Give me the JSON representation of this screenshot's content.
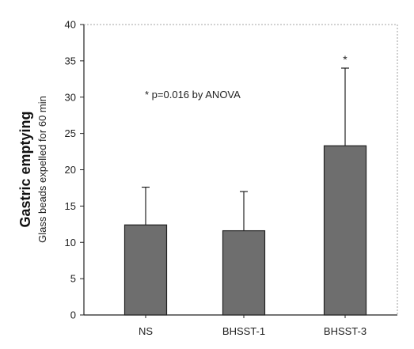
{
  "chart_data": {
    "type": "bar",
    "categories": [
      "NS",
      "BHSST-1",
      "BHSST-3"
    ],
    "values": [
      12.4,
      11.6,
      23.3
    ],
    "errors": [
      5.2,
      5.4,
      10.7
    ],
    "significance": [
      "",
      "",
      "*"
    ],
    "ylabel": "Gastric emptying",
    "ylabel_sub": "Glass beads expelled for 60 min",
    "annotation": "* p=0.016 by ANOVA",
    "ylim": [
      0,
      40
    ],
    "yticks": [
      0,
      5,
      10,
      15,
      20,
      25,
      30,
      35,
      40
    ],
    "bar_color": "#6e6e6e",
    "grid": false,
    "legend": "none"
  }
}
